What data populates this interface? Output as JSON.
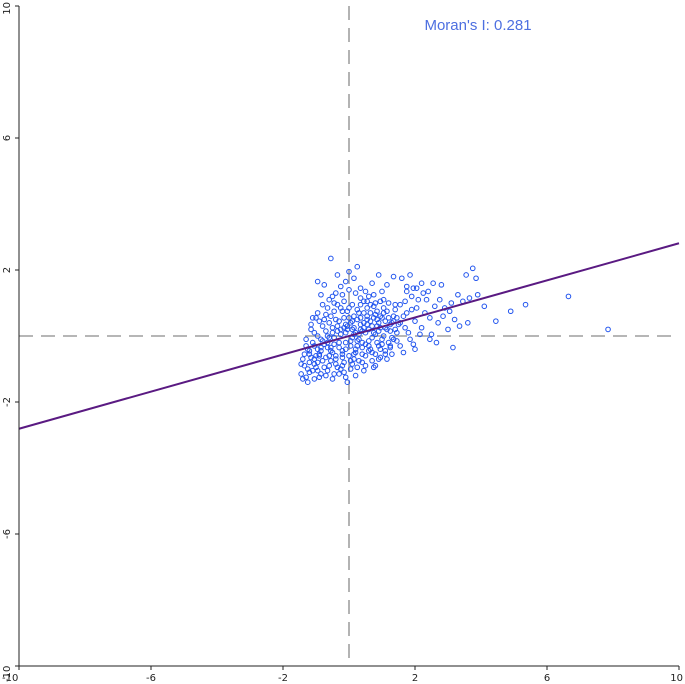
{
  "chart_data": {
    "type": "scatter",
    "title": "",
    "xlabel": "",
    "ylabel": "",
    "xlim": [
      -10,
      10
    ],
    "ylim": [
      -10,
      10
    ],
    "x_ticks": [
      -10,
      -6,
      -2,
      2,
      6,
      10
    ],
    "y_ticks": [
      -10,
      -6,
      -2,
      2,
      6,
      10
    ],
    "x_tick_labels": [
      "-10",
      "-6",
      "-2",
      "2",
      "6",
      "10"
    ],
    "y_tick_labels": [
      "-10",
      "-6",
      "-2",
      "2",
      "6",
      "10"
    ],
    "grid": false,
    "reference_lines": {
      "x": 0,
      "y": 0,
      "style": "dashed",
      "color": "#8a8a8a"
    },
    "regression_line": {
      "slope": 0.281,
      "intercept": 0,
      "color": "#5a1a82"
    },
    "annotation": {
      "text": "Moran's I: 0.281",
      "color": "#4d6fe0"
    },
    "point_color": "#2255ee",
    "points": [
      [
        -1.45,
        -1.15
      ],
      [
        -1.3,
        -1.25
      ],
      [
        -1.1,
        -1.05
      ],
      [
        -0.95,
        -0.8
      ],
      [
        -1.2,
        -0.55
      ],
      [
        -1.05,
        -0.3
      ],
      [
        -0.85,
        -0.1
      ],
      [
        -0.7,
        0.15
      ],
      [
        -0.55,
        -0.45
      ],
      [
        -0.4,
        -0.7
      ],
      [
        -0.25,
        -1.0
      ],
      [
        -0.1,
        -0.4
      ],
      [
        0.05,
        -0.15
      ],
      [
        0.2,
        0.1
      ],
      [
        0.35,
        0.35
      ],
      [
        0.5,
        -0.25
      ],
      [
        0.65,
        0.45
      ],
      [
        0.8,
        0.05
      ],
      [
        0.95,
        0.6
      ],
      [
        1.1,
        0.25
      ],
      [
        1.25,
        -0.35
      ],
      [
        1.4,
        0.8
      ],
      [
        -1.35,
        -0.9
      ],
      [
        -1.25,
        -0.4
      ],
      [
        -1.15,
        0.2
      ],
      [
        -1.0,
        0.55
      ],
      [
        -0.9,
        -0.6
      ],
      [
        -0.75,
        -0.95
      ],
      [
        -0.6,
        0.4
      ],
      [
        -0.45,
        0.75
      ],
      [
        -0.3,
        -0.2
      ],
      [
        -0.15,
        0.55
      ],
      [
        0.0,
        0.85
      ],
      [
        0.15,
        -0.55
      ],
      [
        0.3,
        0.7
      ],
      [
        0.45,
        1.05
      ],
      [
        0.6,
        -0.45
      ],
      [
        0.75,
        0.9
      ],
      [
        0.9,
        -0.7
      ],
      [
        1.05,
        1.1
      ],
      [
        1.2,
        0.55
      ],
      [
        1.35,
        -0.1
      ],
      [
        1.5,
        0.35
      ],
      [
        -1.4,
        -0.7
      ],
      [
        -1.2,
        -1.1
      ],
      [
        -1.05,
        -0.85
      ],
      [
        -0.95,
        0.0
      ],
      [
        -0.8,
        0.3
      ],
      [
        -0.65,
        -0.35
      ],
      [
        -0.5,
        0.1
      ],
      [
        -0.35,
        0.3
      ],
      [
        -0.2,
        -0.65
      ],
      [
        -0.05,
        0.2
      ],
      [
        0.1,
        0.45
      ],
      [
        0.25,
        -0.3
      ],
      [
        0.4,
        0.15
      ],
      [
        0.55,
        0.6
      ],
      [
        0.7,
        -0.05
      ],
      [
        0.85,
        0.3
      ],
      [
        1.0,
        -0.25
      ],
      [
        1.15,
        0.75
      ],
      [
        1.3,
        0.4
      ],
      [
        -1.1,
        -0.2
      ],
      [
        -0.85,
        -0.45
      ],
      [
        -0.7,
        0.65
      ],
      [
        -0.55,
        -0.75
      ],
      [
        -0.35,
        0.95
      ],
      [
        -0.2,
        1.25
      ],
      [
        0.0,
        1.4
      ],
      [
        0.2,
        1.3
      ],
      [
        0.4,
        -0.8
      ],
      [
        0.6,
        1.2
      ],
      [
        0.8,
        -0.9
      ],
      [
        1.0,
        1.35
      ],
      [
        -1.0,
        -0.95
      ],
      [
        -0.75,
        -0.25
      ],
      [
        -0.6,
        -0.05
      ],
      [
        -0.45,
        -0.25
      ],
      [
        -0.25,
        0.05
      ],
      [
        -0.1,
        0.1
      ],
      [
        0.05,
        -0.3
      ],
      [
        0.15,
        0.25
      ],
      [
        0.3,
        -0.1
      ],
      [
        0.45,
        0.4
      ],
      [
        0.6,
        0.2
      ],
      [
        0.75,
        0.55
      ],
      [
        0.9,
        0.15
      ],
      [
        1.1,
        -0.45
      ],
      [
        1.25,
        0.15
      ],
      [
        -0.85,
        -1.15
      ],
      [
        -0.65,
        -1.05
      ],
      [
        -0.45,
        -1.15
      ],
      [
        -0.2,
        -0.9
      ],
      [
        0.05,
        -0.75
      ],
      [
        0.25,
        -0.95
      ],
      [
        0.5,
        -0.6
      ],
      [
        0.7,
        -0.75
      ],
      [
        0.95,
        -0.4
      ],
      [
        1.15,
        -0.7
      ],
      [
        1.3,
        -0.55
      ],
      [
        -1.3,
        -0.1
      ],
      [
        -1.15,
        0.35
      ],
      [
        -0.95,
        0.7
      ],
      [
        -0.8,
        0.95
      ],
      [
        -0.6,
        1.1
      ],
      [
        -0.4,
        1.3
      ],
      [
        -0.15,
        1.05
      ],
      [
        0.1,
        0.95
      ],
      [
        0.35,
        1.15
      ],
      [
        0.55,
        0.85
      ],
      [
        0.8,
        1.0
      ],
      [
        1.05,
        0.7
      ],
      [
        1.4,
        0.95
      ],
      [
        -1.2,
        -0.8
      ],
      [
        -0.9,
        -0.55
      ],
      [
        -0.7,
        -0.65
      ],
      [
        -0.5,
        -0.5
      ],
      [
        -0.3,
        -0.35
      ],
      [
        -0.1,
        -0.2
      ],
      [
        0.1,
        -0.05
      ],
      [
        0.3,
        0.05
      ],
      [
        0.5,
        0.1
      ],
      [
        0.7,
        0.3
      ],
      [
        0.9,
        0.4
      ],
      [
        1.1,
        0.45
      ],
      [
        0.2,
        -0.5
      ],
      [
        0.4,
        -0.35
      ],
      [
        -0.4,
        0.5
      ],
      [
        -0.2,
        0.75
      ],
      [
        0.0,
        0.55
      ],
      [
        0.25,
        0.8
      ],
      [
        0.45,
        0.7
      ],
      [
        0.65,
        0.95
      ],
      [
        0.85,
        0.75
      ],
      [
        -1.4,
        -1.3
      ],
      [
        -1.25,
        -1.4
      ],
      [
        -1.05,
        -1.3
      ],
      [
        -0.9,
        -1.25
      ],
      [
        -1.3,
        -0.3
      ],
      [
        -1.45,
        -0.85
      ],
      [
        1.55,
        0.95
      ],
      [
        1.65,
        0.6
      ],
      [
        1.75,
        1.35
      ],
      [
        1.8,
        0.1
      ],
      [
        1.9,
        0.8
      ],
      [
        1.95,
        -0.25
      ],
      [
        2.0,
        0.45
      ],
      [
        2.1,
        1.1
      ],
      [
        2.2,
        0.25
      ],
      [
        2.3,
        0.7
      ],
      [
        2.4,
        1.35
      ],
      [
        2.5,
        0.05
      ],
      [
        2.6,
        0.9
      ],
      [
        2.7,
        0.4
      ],
      [
        2.8,
        1.55
      ],
      [
        2.9,
        0.85
      ],
      [
        3.0,
        0.2
      ],
      [
        3.1,
        1.0
      ],
      [
        3.2,
        0.5
      ],
      [
        3.3,
        1.25
      ],
      [
        1.6,
        1.75
      ],
      [
        1.75,
        1.5
      ],
      [
        1.85,
        1.85
      ],
      [
        1.95,
        1.45
      ],
      [
        2.05,
        1.45
      ],
      [
        2.2,
        1.6
      ],
      [
        2.35,
        1.1
      ],
      [
        2.65,
        -0.2
      ],
      [
        2.85,
        0.6
      ],
      [
        3.15,
        -0.35
      ],
      [
        1.45,
        0.1
      ],
      [
        1.55,
        -0.3
      ],
      [
        1.7,
        0.25
      ],
      [
        1.85,
        -0.1
      ],
      [
        2.15,
        0.05
      ],
      [
        2.45,
        -0.1
      ],
      [
        3.45,
        1.05
      ],
      [
        3.65,
        1.15
      ],
      [
        3.85,
        1.75
      ],
      [
        4.1,
        0.9
      ],
      [
        4.45,
        0.45
      ],
      [
        4.9,
        0.75
      ],
      [
        5.35,
        0.95
      ],
      [
        6.65,
        1.2
      ],
      [
        7.85,
        0.2
      ],
      [
        3.55,
        1.85
      ],
      [
        3.75,
        2.05
      ],
      [
        3.6,
        0.4
      ],
      [
        3.9,
        1.25
      ],
      [
        2.55,
        1.6
      ],
      [
        -0.55,
        2.35
      ],
      [
        -0.75,
        1.55
      ],
      [
        -0.95,
        1.65
      ],
      [
        -0.35,
        1.85
      ],
      [
        -0.1,
        1.65
      ],
      [
        0.15,
        1.75
      ],
      [
        0.35,
        1.45
      ],
      [
        0.5,
        1.35
      ],
      [
        0.7,
        1.6
      ],
      [
        0.9,
        1.85
      ],
      [
        1.15,
        1.55
      ],
      [
        1.35,
        1.8
      ],
      [
        0.25,
        2.1
      ],
      [
        0.0,
        1.95
      ],
      [
        -0.25,
        1.5
      ],
      [
        -0.5,
        1.2
      ],
      [
        -0.05,
        -1.4
      ],
      [
        0.2,
        -1.2
      ],
      [
        0.45,
        -1.05
      ],
      [
        0.75,
        -0.95
      ],
      [
        -0.15,
        -1.1
      ],
      [
        0.05,
        -1.0
      ],
      [
        -0.35,
        -0.95
      ],
      [
        -0.6,
        -0.9
      ],
      [
        0.95,
        -0.65
      ],
      [
        1.25,
        -0.3
      ],
      [
        1.45,
        -0.15
      ],
      [
        -0.8,
        -0.15
      ],
      [
        -0.65,
        0.0
      ],
      [
        -0.5,
        0.25
      ],
      [
        -0.3,
        0.45
      ],
      [
        -0.1,
        0.35
      ],
      [
        0.1,
        0.2
      ],
      [
        0.35,
        0.55
      ],
      [
        0.55,
        0.35
      ],
      [
        0.8,
        0.65
      ],
      [
        1.0,
        0.55
      ],
      [
        1.2,
        1.0
      ],
      [
        1.35,
        0.6
      ],
      [
        0.6,
        -0.15
      ],
      [
        0.85,
        -0.2
      ],
      [
        1.05,
        0.0
      ],
      [
        -0.2,
        -0.45
      ],
      [
        -0.4,
        -0.6
      ],
      [
        0.15,
        -0.7
      ],
      [
        0.4,
        -0.55
      ],
      [
        0.65,
        -0.4
      ],
      [
        -1.35,
        -0.55
      ],
      [
        -1.15,
        -0.65
      ],
      [
        -0.95,
        -0.4
      ],
      [
        2.25,
        1.3
      ],
      [
        2.45,
        0.55
      ],
      [
        2.75,
        1.1
      ],
      [
        3.05,
        0.75
      ],
      [
        3.35,
        0.3
      ],
      [
        1.7,
        1.05
      ],
      [
        1.9,
        1.2
      ],
      [
        2.05,
        0.85
      ],
      [
        1.65,
        -0.5
      ],
      [
        2.0,
        -0.4
      ],
      [
        -0.85,
        1.25
      ],
      [
        -0.65,
        0.85
      ],
      [
        -0.45,
        1.0
      ],
      [
        -0.25,
        0.85
      ],
      [
        -0.05,
        0.75
      ],
      [
        0.15,
        0.6
      ],
      [
        0.35,
        0.95
      ],
      [
        0.55,
        1.05
      ],
      [
        0.75,
        1.25
      ],
      [
        0.95,
        1.05
      ],
      [
        -1.05,
        0.1
      ],
      [
        -0.9,
        0.45
      ],
      [
        -0.75,
        0.5
      ],
      [
        -0.55,
        0.6
      ],
      [
        -0.35,
        0.15
      ],
      [
        -0.15,
        0.25
      ],
      [
        0.05,
        0.4
      ],
      [
        0.25,
        0.5
      ],
      [
        0.45,
        0.25
      ],
      [
        0.65,
        0.7
      ],
      [
        0.85,
        0.5
      ],
      [
        1.05,
        0.85
      ],
      [
        1.25,
        0.35
      ],
      [
        1.45,
        0.55
      ],
      [
        -1.2,
        -0.45
      ],
      [
        -1.0,
        -0.6
      ],
      [
        -0.8,
        -0.75
      ],
      [
        -0.6,
        -0.6
      ],
      [
        -0.4,
        -0.85
      ],
      [
        -0.2,
        -0.55
      ],
      [
        0.0,
        -0.6
      ],
      [
        0.2,
        -0.4
      ],
      [
        0.4,
        -0.2
      ],
      [
        0.6,
        -0.3
      ],
      [
        0.8,
        -0.55
      ],
      [
        1.0,
        -0.1
      ],
      [
        1.2,
        -0.2
      ],
      [
        1.4,
        0.2
      ],
      [
        -1.1,
        0.55
      ],
      [
        -0.7,
        -1.2
      ],
      [
        -0.5,
        -1.3
      ],
      [
        -0.3,
        -1.15
      ],
      [
        -0.1,
        -1.25
      ],
      [
        0.1,
        -0.85
      ],
      [
        0.3,
        -0.75
      ],
      [
        0.5,
        -0.9
      ],
      [
        0.7,
        -0.5
      ],
      [
        0.9,
        -0.3
      ],
      [
        1.1,
        -0.55
      ],
      [
        1.3,
        -0.05
      ],
      [
        -1.25,
        -1.0
      ],
      [
        -1.05,
        -0.7
      ],
      [
        -0.85,
        -0.35
      ],
      [
        -0.65,
        -0.2
      ],
      [
        -0.45,
        -0.05
      ],
      [
        -0.25,
        0.2
      ],
      [
        -0.05,
        0.3
      ],
      [
        0.15,
        0.05
      ],
      [
        0.35,
        0.2
      ],
      [
        0.55,
        0.5
      ],
      [
        0.75,
        0.1
      ],
      [
        0.95,
        0.25
      ],
      [
        1.15,
        0.2
      ],
      [
        1.35,
        0.45
      ],
      [
        1.55,
        0.4
      ],
      [
        1.75,
        0.7
      ],
      [
        -0.95,
        -1.05
      ],
      [
        -0.55,
        -0.35
      ],
      [
        -0.15,
        -0.8
      ],
      [
        0.25,
        -0.15
      ]
    ]
  }
}
